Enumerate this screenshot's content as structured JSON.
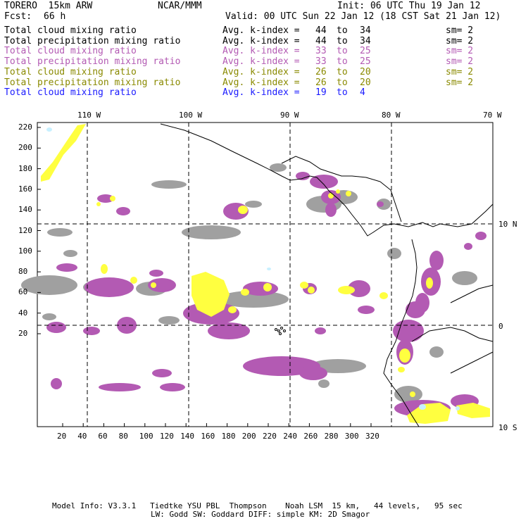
{
  "header": {
    "model": "TORERO  15km ARW",
    "org": "NCAR/MMM",
    "init": "Init: 06 UTC Thu 19 Jan 12",
    "fcst_label": "Fcst:",
    "fcst_value": "66 h",
    "valid": "Valid: 00 UTC Sun 22 Jan 12 (18 CST Sat 21 Jan 12)"
  },
  "legend": [
    {
      "field": "Total cloud mixing ratio",
      "kindex": "Avg. k-index = ",
      "lo": "44",
      "to": "to",
      "hi": "34",
      "sm": "sm= 2",
      "color": "#000000"
    },
    {
      "field": "Total precipitation mixing ratio",
      "kindex": "Avg. k-index = ",
      "lo": "44",
      "to": "to",
      "hi": "34",
      "sm": "sm= 2",
      "color": "#000000"
    },
    {
      "field": "Total cloud mixing ratio",
      "kindex": "Avg. k-index = ",
      "lo": "33",
      "to": "to",
      "hi": "25",
      "sm": "sm= 2",
      "color": "#b35ab3"
    },
    {
      "field": "Total precipitation mixing ratio",
      "kindex": "Avg. k-index = ",
      "lo": "33",
      "to": "to",
      "hi": "25",
      "sm": "sm= 2",
      "color": "#b35ab3"
    },
    {
      "field": "Total cloud mixing ratio",
      "kindex": "Avg. k-index = ",
      "lo": "26",
      "to": "to",
      "hi": "20",
      "sm": "sm= 2",
      "color": "#8a8a00"
    },
    {
      "field": "Total precipitation mixing ratio",
      "kindex": "Avg. k-index = ",
      "lo": "26",
      "to": "to",
      "hi": "20",
      "sm": "sm= 2",
      "color": "#8a8a00"
    },
    {
      "field": "Total cloud mixing ratio",
      "kindex": "Avg. k-index = ",
      "lo": "19",
      "to": "to",
      "hi": "4",
      "sm": "",
      "color": "#1a1aff"
    }
  ],
  "map": {
    "lon_labels": [
      "110 W",
      "100 W",
      "90 W",
      "80 W",
      "70 W"
    ],
    "lat_labels": [
      "10 N",
      "0",
      "10 S"
    ],
    "x_ticks": [
      "20",
      "40",
      "60",
      "80",
      "100",
      "120",
      "140",
      "160",
      "180",
      "200",
      "220",
      "240",
      "260",
      "280",
      "300",
      "320"
    ],
    "y_ticks": [
      "220",
      "200",
      "180",
      "160",
      "140",
      "120",
      "100",
      "80",
      "60",
      "40",
      "20"
    ],
    "colors": {
      "gray": "#a0a0a0",
      "purple": "#b35ab3",
      "yellow": "#ffff40",
      "lightblue": "#c8f0ff",
      "coast": "#000000",
      "grid": "#000000"
    }
  },
  "footer": {
    "line1": "Model Info: V3.3.1   Tiedtke YSU PBL  Thompson    Noah LSM  15 km,   44 levels,   95 sec",
    "line2": "LW: Godd SW: Goddard DIFF: simple KM: 2D Smagor"
  }
}
